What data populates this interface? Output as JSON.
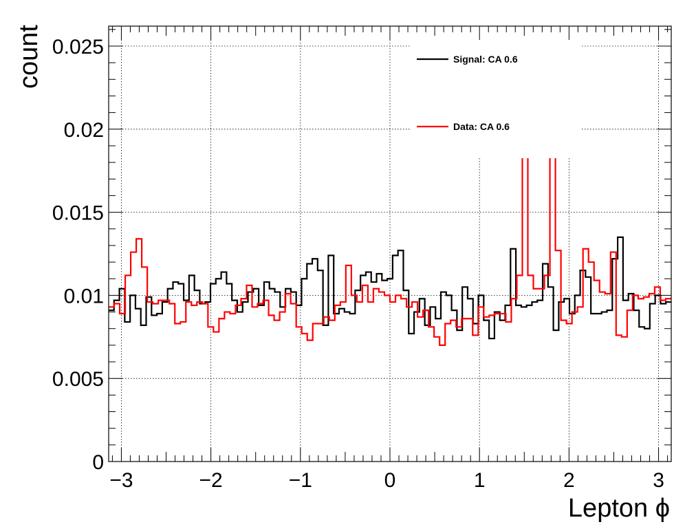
{
  "chart_data": {
    "type": "histogram-step",
    "title": "",
    "xlabel": "Lepton ϕ",
    "ylabel": "count",
    "xlim": [
      -3.1416,
      3.1416
    ],
    "ylim": [
      0,
      0.0262
    ],
    "xticks": [
      -3,
      -2,
      -1,
      0,
      1,
      2,
      3
    ],
    "xtick_labels": [
      "−3",
      "−2",
      "−1",
      "0",
      "1",
      "2",
      "3"
    ],
    "yticks": [
      0,
      0.005,
      0.01,
      0.015,
      0.02,
      0.025
    ],
    "ytick_labels": [
      "0",
      "0.005",
      "0.01",
      "0.015",
      "0.02",
      "0.025"
    ],
    "grid": true,
    "legend_position": "top-right",
    "series": [
      {
        "name": "Signal: CA 0.6",
        "color": "#000000",
        "values": [
          0.0091,
          0.0097,
          0.0104,
          0.0084,
          0.01,
          0.0092,
          0.0082,
          0.0099,
          0.0088,
          0.0089,
          0.0096,
          0.0104,
          0.0108,
          0.0107,
          0.0097,
          0.0112,
          0.0103,
          0.0095,
          0.0096,
          0.0107,
          0.011,
          0.0114,
          0.0107,
          0.0097,
          0.009,
          0.0096,
          0.0102,
          0.0104,
          0.0094,
          0.0108,
          0.0104,
          0.0102,
          0.0093,
          0.0104,
          0.0102,
          0.0094,
          0.011,
          0.0119,
          0.0122,
          0.0115,
          0.0082,
          0.0124,
          0.0089,
          0.0092,
          0.009,
          0.0089,
          0.0103,
          0.0112,
          0.0114,
          0.0108,
          0.0113,
          0.0109,
          0.011,
          0.0124,
          0.0127,
          0.0103,
          0.0077,
          0.009,
          0.0098,
          0.0082,
          0.0093,
          0.0086,
          0.0102,
          0.01,
          0.0091,
          0.0079,
          0.0105,
          0.0098,
          0.0083,
          0.01,
          0.0085,
          0.0074,
          0.009,
          0.0085,
          0.0094,
          0.0128,
          0.0094,
          0.0093,
          0.0094,
          0.0096,
          0.0097,
          0.0119,
          0.0105,
          0.0079,
          0.0096,
          0.0098,
          0.0089,
          0.01,
          0.0115,
          0.0111,
          0.0089,
          0.0089,
          0.009,
          0.0091,
          0.0122,
          0.0135,
          0.0097,
          0.0101,
          0.0091,
          0.0081,
          0.008,
          0.0095,
          0.01,
          0.0095,
          0.0096
        ]
      },
      {
        "name": "Data: CA 0.6",
        "color": "#ff0000",
        "values": [
          0.0093,
          0.0095,
          0.0089,
          0.0112,
          0.0126,
          0.0134,
          0.0117,
          0.0096,
          0.0095,
          0.0097,
          0.0097,
          0.0095,
          0.0083,
          0.0084,
          0.0096,
          0.0094,
          0.0096,
          0.0095,
          0.0081,
          0.0078,
          0.0086,
          0.009,
          0.0089,
          0.0094,
          0.0098,
          0.0106,
          0.0093,
          0.0095,
          0.0097,
          0.0088,
          0.0085,
          0.009,
          0.0101,
          0.0095,
          0.0081,
          0.0077,
          0.0073,
          0.0083,
          0.0083,
          0.0087,
          0.0085,
          0.0094,
          0.0096,
          0.0118,
          0.01,
          0.0096,
          0.0106,
          0.0096,
          0.0104,
          0.0102,
          0.01,
          0.0096,
          0.01,
          0.0098,
          0.0093,
          0.0096,
          0.0087,
          0.0091,
          0.0081,
          0.0075,
          0.007,
          0.0083,
          0.0085,
          0.0081,
          0.0086,
          0.0086,
          0.0076,
          0.0093,
          0.0087,
          0.0088,
          0.0089,
          0.0089,
          0.0084,
          0.0098,
          0.0112,
          0.0183,
          0.0112,
          0.0104,
          0.0104,
          0.0112,
          0.0183,
          0.0127,
          0.0085,
          0.0083,
          0.009,
          0.0093,
          0.0128,
          0.012,
          0.0109,
          0.0102,
          0.0101,
          0.0126,
          0.0076,
          0.0075,
          0.0091,
          0.01,
          0.0098,
          0.0099,
          0.0101,
          0.0105,
          0.0097,
          0.0098
        ]
      }
    ]
  }
}
